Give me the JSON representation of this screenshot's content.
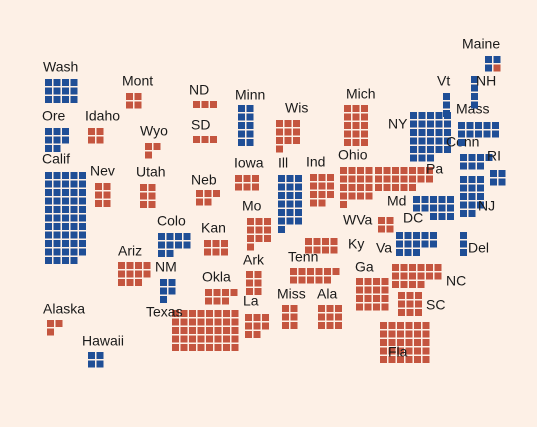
{
  "colors": {
    "blue": "#1f4e96",
    "red": "#c4553f"
  },
  "states": [
    {
      "label": "Wash",
      "blue": 12
    },
    {
      "label": "Ore",
      "blue": 8
    },
    {
      "label": "Calif",
      "blue": 54
    },
    {
      "label": "Idaho",
      "red": 4
    },
    {
      "label": "Nev",
      "red": 6
    },
    {
      "label": "Mont",
      "red": 4
    },
    {
      "label": "Wyo",
      "red": 3
    },
    {
      "label": "Utah",
      "red": 6
    },
    {
      "label": "Ariz",
      "red": 11
    },
    {
      "label": "Alaska",
      "red": 3
    },
    {
      "label": "Hawaii",
      "blue": 4
    },
    {
      "label": "Colo",
      "blue": 10
    },
    {
      "label": "NM",
      "blue": 5
    },
    {
      "label": "Texas",
      "red": 40
    },
    {
      "label": "ND",
      "red": 3
    },
    {
      "label": "SD",
      "red": 3
    },
    {
      "label": "Neb",
      "red": 5
    },
    {
      "label": "Kan",
      "red": 6
    },
    {
      "label": "Okla",
      "red": 7
    },
    {
      "label": "Minn",
      "blue": 10
    },
    {
      "label": "Iowa",
      "red": 6
    },
    {
      "label": "Mo",
      "red": 10
    },
    {
      "label": "Ark",
      "red": 6
    },
    {
      "label": "La",
      "red": 8
    },
    {
      "label": "Wis",
      "red": 10
    },
    {
      "label": "Ill",
      "blue": 19
    },
    {
      "label": "Ind",
      "red": 11
    },
    {
      "label": "Miss",
      "red": 6
    },
    {
      "label": "Tenn",
      "red": 11
    },
    {
      "label": "Ala",
      "red": 9
    },
    {
      "label": "Mich",
      "red": 15
    },
    {
      "label": "Ohio",
      "red": 17
    },
    {
      "label": "Ky",
      "red": 8
    },
    {
      "label": "WVa",
      "red": 4
    },
    {
      "label": "Ga",
      "red": 16
    },
    {
      "label": "Fla",
      "red": 30
    },
    {
      "label": "SC",
      "red": 9
    },
    {
      "label": "NC",
      "red": 16
    },
    {
      "label": "Va",
      "blue": 13
    },
    {
      "label": "DC",
      "blue": 3
    },
    {
      "label": "Md",
      "blue": 10
    },
    {
      "label": "Del",
      "blue": 3
    },
    {
      "label": "NJ",
      "blue": 14
    },
    {
      "label": "Pa",
      "red": 19
    },
    {
      "label": "NY",
      "blue": 28
    },
    {
      "label": "Conn",
      "blue": 7
    },
    {
      "label": "RI",
      "blue": 4
    },
    {
      "label": "Mass",
      "blue": 11
    },
    {
      "label": "Vt",
      "blue": 3
    },
    {
      "label": "NH",
      "blue": 4
    },
    {
      "label": "Maine",
      "blue": 3,
      "red": 1
    }
  ]
}
